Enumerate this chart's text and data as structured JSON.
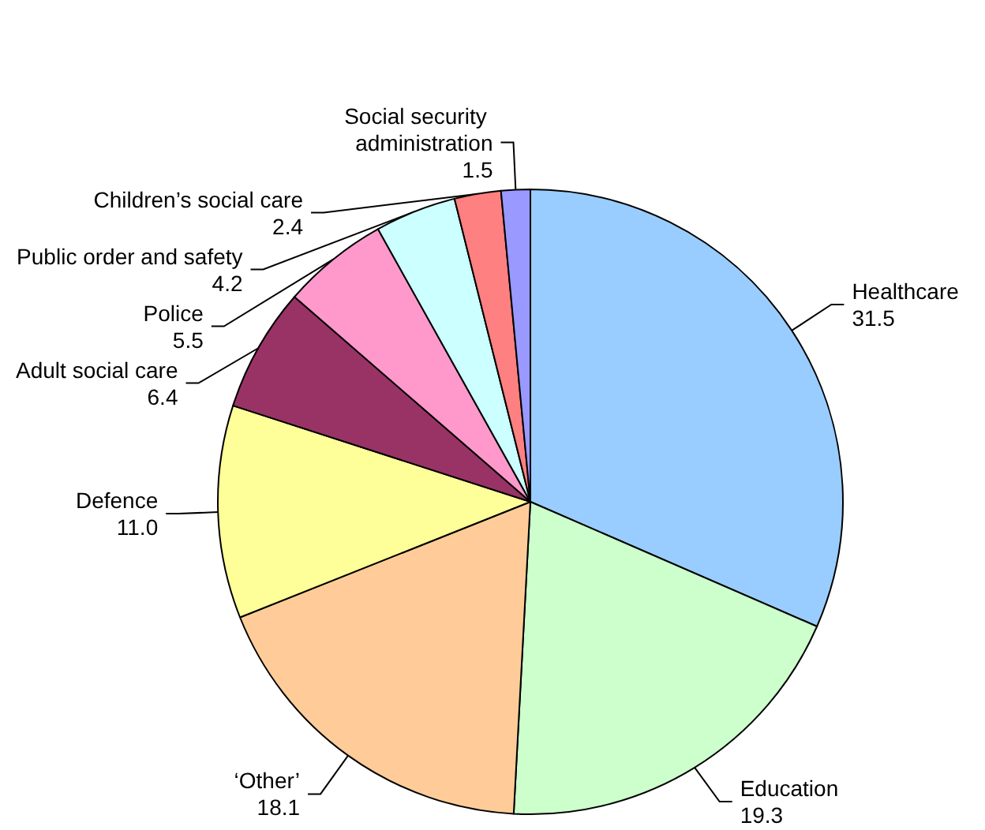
{
  "chart_data": {
    "type": "pie",
    "categories": [
      "Healthcare",
      "Education",
      "‘Other’",
      "Defence",
      "Adult social care",
      "Police",
      "Public order and safety",
      "Children’s social care",
      "Social security administration"
    ],
    "values": [
      31.5,
      19.3,
      18.1,
      11.0,
      6.4,
      5.5,
      4.2,
      2.4,
      1.5
    ],
    "value_labels": [
      "31.5",
      "19.3",
      "18.1",
      "11.0",
      "6.4",
      "5.5",
      "4.2",
      "2.4",
      "1.5"
    ],
    "colors": [
      "#99ccff",
      "#ccffcc",
      "#ffcc99",
      "#ffff99",
      "#993366",
      "#ff99cc",
      "#ccffff",
      "#ff8080",
      "#9999ff"
    ],
    "legend": false
  }
}
